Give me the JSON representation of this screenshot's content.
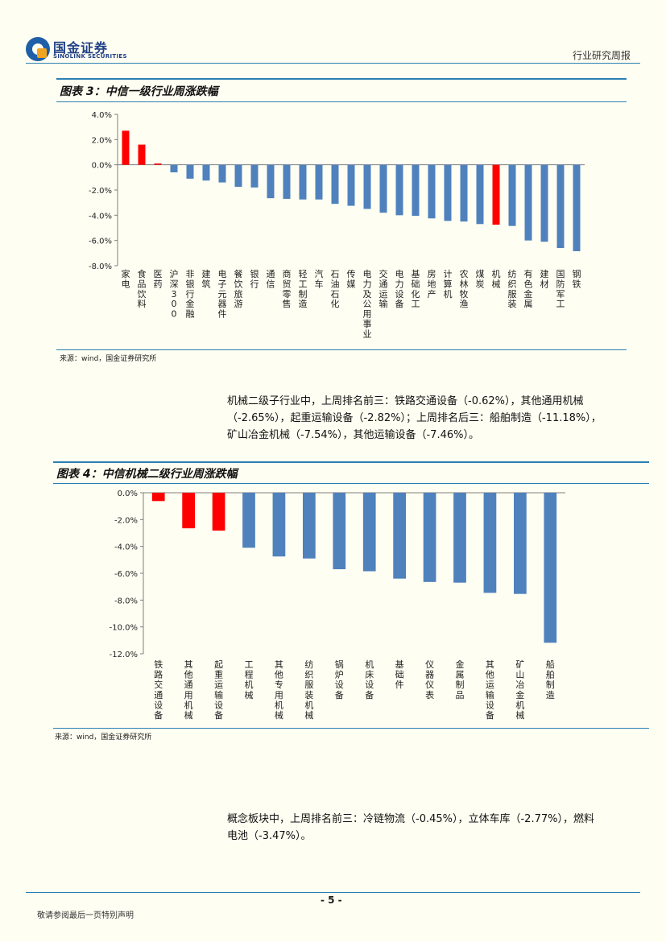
{
  "header": {
    "logo_cn": "国金证券",
    "logo_en": "SINOLINK SECURITIES",
    "doc_type": "行业研究周报"
  },
  "figure3": {
    "title": "图表 3：中信一级行业周涨跌幅",
    "source": "来源：wind，国金证券研究所"
  },
  "paragraph1": [
    "机械二级子行业中，上周排名前三：铁路交通设备（-0.62%），其他通用机械",
    "（-2.65%），起重运输设备（-2.82%）；上周排名后三：船舶制造（-11.18%），",
    "矿山冶金机械（-7.54%），其他运输设备（-7.46%）。"
  ],
  "figure4": {
    "title": "图表 4：中信机械二级行业周涨跌幅",
    "source": "来源：wind，国金证券研究所"
  },
  "paragraph2": [
    "概念板块中，上周排名前三：冷链物流（-0.45%），立体车库（-2.77%），燃料",
    "电池（-3.47%）。"
  ],
  "footer": {
    "page": "- 5 -",
    "note": "敬请参阅最后一页特别声明"
  },
  "colors": {
    "positive": "#ff0000",
    "negative": "#4f81bd",
    "highlight": "#ff0000",
    "rule": "#2a7fb5"
  },
  "chart_data": [
    {
      "type": "bar",
      "title": "中信一级行业周涨跌幅",
      "categories": [
        "家电",
        "食品饮料",
        "医药",
        "沪深300",
        "非银行金融",
        "建筑",
        "电子元器件",
        "餐饮旅游",
        "银行",
        "通信",
        "商贸零售",
        "轻工制造",
        "汽车",
        "石油石化",
        "传媒",
        "电力及公用事业",
        "交通运输",
        "电力设备",
        "基础化工",
        "房地产",
        "计算机",
        "农林牧渔",
        "煤炭",
        "机械",
        "纺织服装",
        "有色金属",
        "建材",
        "国防军工",
        "钢铁"
      ],
      "values": [
        2.7,
        1.6,
        0.1,
        -0.6,
        -1.1,
        -1.25,
        -1.4,
        -1.75,
        -1.8,
        -2.65,
        -2.7,
        -2.75,
        -2.75,
        -3.1,
        -3.25,
        -3.5,
        -3.8,
        -4.0,
        -4.05,
        -4.25,
        -4.45,
        -4.5,
        -4.7,
        -4.75,
        -4.85,
        -6.0,
        -6.1,
        -6.6,
        -6.85
      ],
      "highlight": [
        "家电",
        "食品饮料",
        "医药",
        "机械"
      ],
      "ylim": [
        -8,
        4
      ],
      "yticks": [
        "4.0%",
        "2.0%",
        "0.0%",
        "-2.0%",
        "-4.0%",
        "-6.0%",
        "-8.0%"
      ],
      "grid": false,
      "legend": "none"
    },
    {
      "type": "bar",
      "title": "中信机械二级行业周涨跌幅",
      "categories": [
        "铁路交通设备",
        "其他通用机械",
        "起重运输设备",
        "工程机械",
        "其他专用机械",
        "纺织服装机械",
        "锅炉设备",
        "机床设备",
        "基础件",
        "仪器仪表",
        "金属制品",
        "其他运输设备",
        "矿山冶金机械",
        "船舶制造"
      ],
      "values": [
        -0.62,
        -2.65,
        -2.82,
        -4.1,
        -4.75,
        -4.9,
        -5.7,
        -5.85,
        -6.4,
        -6.65,
        -6.7,
        -7.46,
        -7.54,
        -11.18
      ],
      "highlight": [
        "铁路交通设备",
        "其他通用机械",
        "起重运输设备"
      ],
      "ylim": [
        -12,
        0
      ],
      "yticks": [
        "0.0%",
        "-2.0%",
        "-4.0%",
        "-6.0%",
        "-8.0%",
        "-10.0%",
        "-12.0%"
      ],
      "grid": false,
      "legend": "none"
    }
  ]
}
